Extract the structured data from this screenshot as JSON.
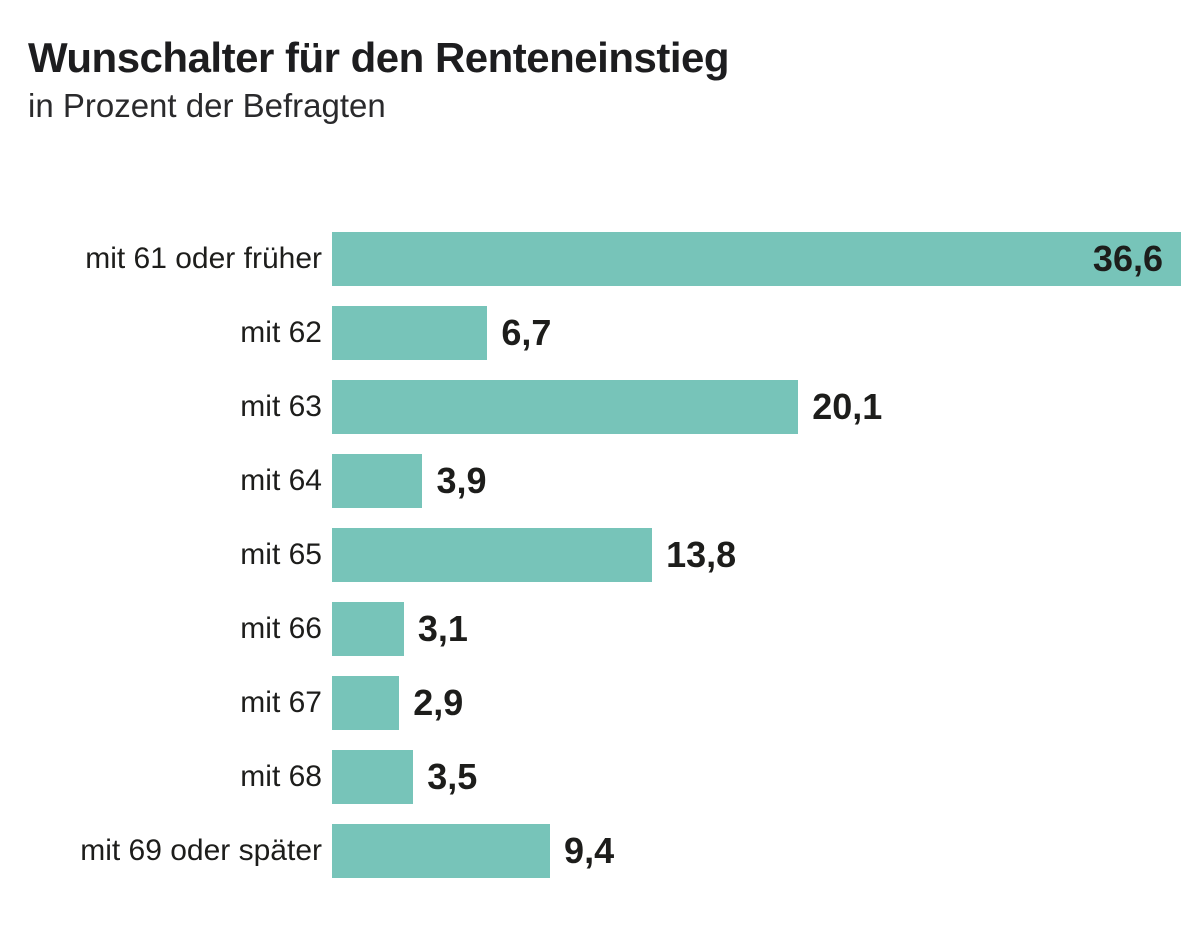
{
  "header": {
    "title": "Wunschalter für den Renteneinstieg",
    "subtitle": "in Prozent der Befragten"
  },
  "chart_data": {
    "type": "bar",
    "orientation": "horizontal",
    "title": "Wunschalter für den Renteneinstieg",
    "subtitle": "in Prozent der Befragten",
    "xlabel": "",
    "ylabel": "",
    "categories": [
      "mit 61 oder früher",
      "mit 62",
      "mit 63",
      "mit 64",
      "mit 65",
      "mit 66",
      "mit 67",
      "mit 68",
      "mit 69 oder später"
    ],
    "values": [
      36.6,
      6.7,
      20.1,
      3.9,
      13.8,
      3.1,
      2.9,
      3.5,
      9.4
    ],
    "value_labels": [
      "36,6",
      "6,7",
      "20,1",
      "3,9",
      "13,8",
      "3,1",
      "2,9",
      "3,5",
      "9,4"
    ],
    "xlim": [
      0,
      36.6
    ],
    "grid": false,
    "legend_position": "none",
    "bar_color": "#77c4b9",
    "text_color": "#1d1d1b"
  }
}
